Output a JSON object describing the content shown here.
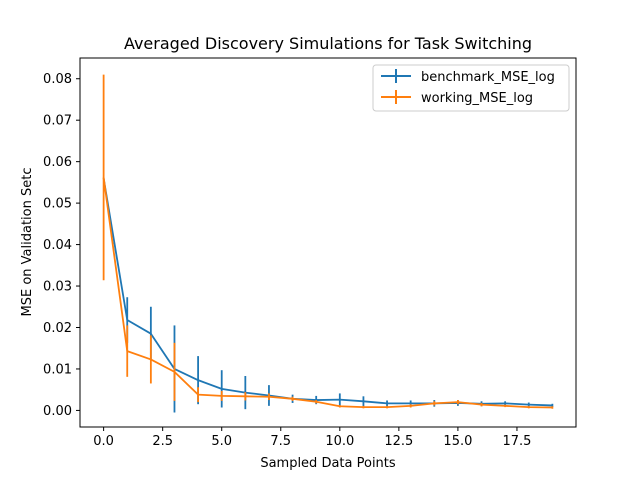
{
  "chart_data": {
    "type": "line",
    "title": "Averaged Discovery Simulations for Task Switching",
    "xlabel": "Sampled Data Points",
    "ylabel": "MSE on Validation Setc",
    "xlim": [
      -1.0,
      20.0
    ],
    "ylim": [
      -0.004,
      0.085
    ],
    "xticks": [
      0.0,
      2.5,
      5.0,
      7.5,
      10.0,
      12.5,
      15.0,
      17.5
    ],
    "xtick_labels": [
      "0.0",
      "2.5",
      "5.0",
      "7.5",
      "10.0",
      "12.5",
      "15.0",
      "17.5"
    ],
    "yticks": [
      0.0,
      0.01,
      0.02,
      0.03,
      0.04,
      0.05,
      0.06,
      0.07,
      0.08
    ],
    "ytick_labels": [
      "0.00",
      "0.01",
      "0.02",
      "0.03",
      "0.04",
      "0.05",
      "0.06",
      "0.07",
      "0.08"
    ],
    "grid": false,
    "legend_position": "top-right",
    "x": [
      0,
      1,
      2,
      3,
      4,
      5,
      6,
      7,
      8,
      9,
      10,
      11,
      12,
      13,
      14,
      15,
      16,
      17,
      18,
      19
    ],
    "series": [
      {
        "name": "benchmark_MSE_log",
        "color": "#1f77b4",
        "values": [
          0.056,
          0.0218,
          0.0185,
          0.01,
          0.0073,
          0.0052,
          0.0043,
          0.0036,
          0.0028,
          0.0025,
          0.0026,
          0.0022,
          0.0017,
          0.0017,
          0.0017,
          0.0018,
          0.0016,
          0.0017,
          0.0014,
          0.0012
        ],
        "error": [
          0.0,
          0.0055,
          0.0065,
          0.0105,
          0.0058,
          0.0045,
          0.004,
          0.0025,
          0.001,
          0.001,
          0.0015,
          0.0012,
          0.0007,
          0.0007,
          0.0008,
          0.0007,
          0.0006,
          0.0005,
          0.0005,
          0.0004
        ]
      },
      {
        "name": "working_MSE_log",
        "color": "#ff7f0e",
        "values": [
          0.0562,
          0.0143,
          0.0123,
          0.0093,
          0.0038,
          0.0035,
          0.0034,
          0.0033,
          0.0028,
          0.0021,
          0.001,
          0.0008,
          0.0008,
          0.0011,
          0.0017,
          0.002,
          0.0014,
          0.0011,
          0.0008,
          0.0007
        ],
        "error": [
          0.0248,
          0.0062,
          0.0058,
          0.007,
          0.0018,
          0.0012,
          0.001,
          0.0008,
          0.0005,
          0.0004,
          0.0003,
          0.0003,
          0.0003,
          0.0004,
          0.0005,
          0.0005,
          0.0004,
          0.0003,
          0.0003,
          0.0003
        ]
      }
    ]
  }
}
